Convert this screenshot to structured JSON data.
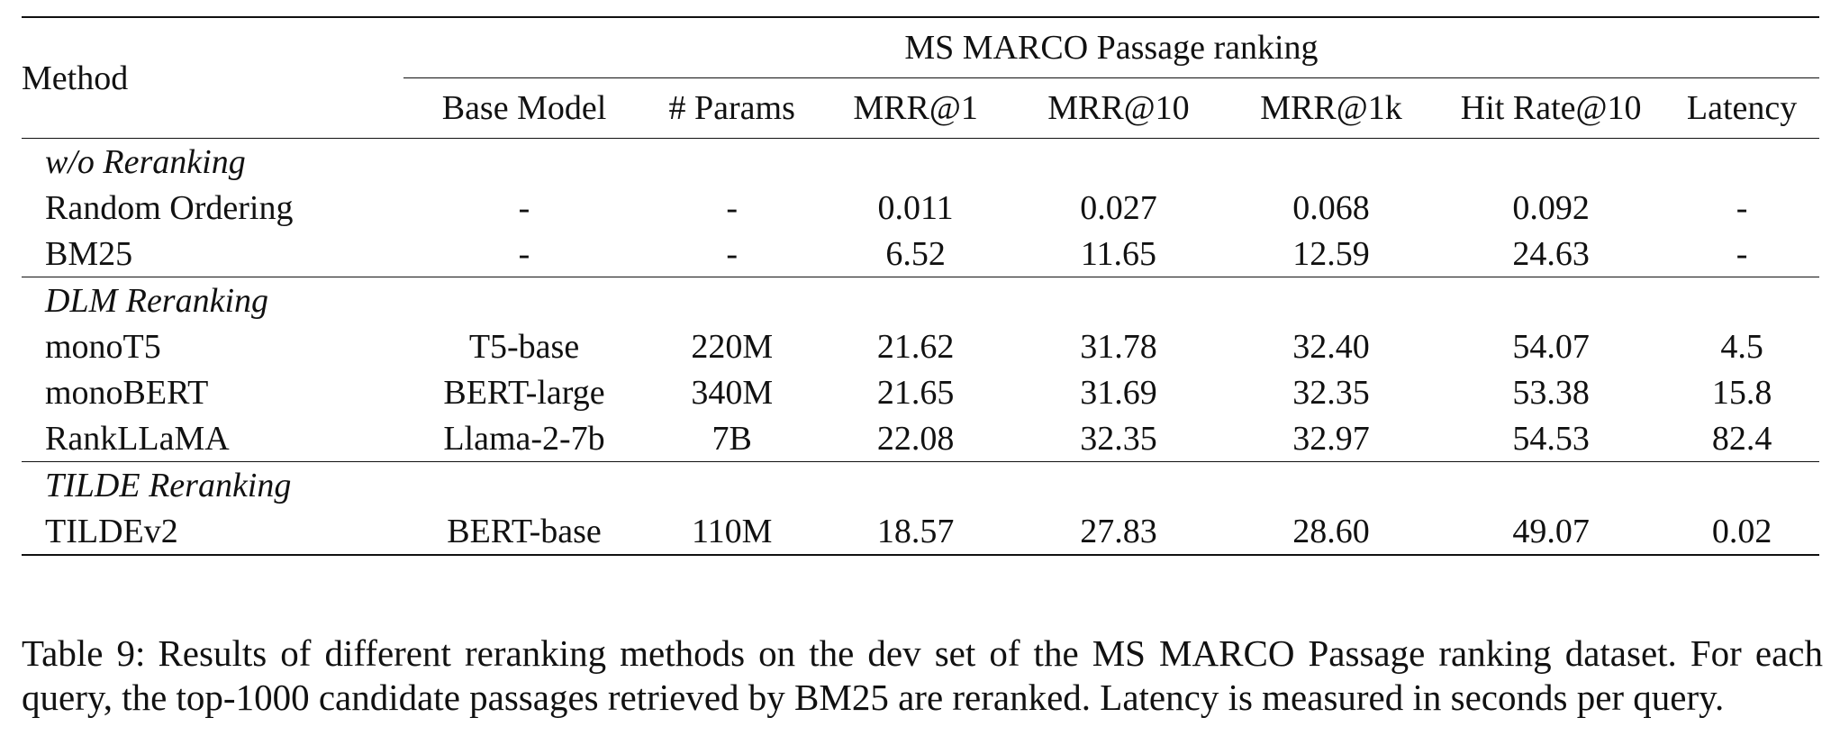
{
  "table": {
    "method_header": "Method",
    "group_header": "MS MARCO Passage ranking",
    "columns": [
      "Base Model",
      "# Params",
      "MRR@1",
      "MRR@10",
      "MRR@1k",
      "Hit Rate@10",
      "Latency"
    ],
    "sections": [
      {
        "title": "w/o Reranking",
        "rows": [
          {
            "method": "Random Ordering",
            "base_model": "-",
            "params": "-",
            "mrr1": "0.011",
            "mrr10": "0.027",
            "mrr1k": "0.068",
            "hit10": "0.092",
            "latency": "-"
          },
          {
            "method": "BM25",
            "base_model": "-",
            "params": "-",
            "mrr1": "6.52",
            "mrr10": "11.65",
            "mrr1k": "12.59",
            "hit10": "24.63",
            "latency": "-"
          }
        ]
      },
      {
        "title": "DLM Reranking",
        "rows": [
          {
            "method": "monoT5",
            "base_model": "T5-base",
            "params": "220M",
            "mrr1": "21.62",
            "mrr10": "31.78",
            "mrr1k": "32.40",
            "hit10": "54.07",
            "latency": "4.5"
          },
          {
            "method": "monoBERT",
            "base_model": "BERT-large",
            "params": "340M",
            "mrr1": "21.65",
            "mrr10": "31.69",
            "mrr1k": "32.35",
            "hit10": "53.38",
            "latency": "15.8"
          },
          {
            "method": "RankLLaMA",
            "base_model": "Llama-2-7b",
            "params": "7B",
            "mrr1": "22.08",
            "mrr10": "32.35",
            "mrr1k": "32.97",
            "hit10": "54.53",
            "latency": "82.4"
          }
        ]
      },
      {
        "title": "TILDE Reranking",
        "rows": [
          {
            "method": "TILDEv2",
            "base_model": "BERT-base",
            "params": "110M",
            "mrr1": "18.57",
            "mrr10": "27.83",
            "mrr1k": "28.60",
            "hit10": "49.07",
            "latency": "0.02"
          }
        ]
      }
    ]
  },
  "caption": {
    "label": "Table 9:",
    "text": "Results of different reranking methods on the dev set of the MS MARCO Passage ranking dataset. For each query, the top-1000 candidate passages retrieved by BM25 are reranked. Latency is measured in seconds per query."
  }
}
